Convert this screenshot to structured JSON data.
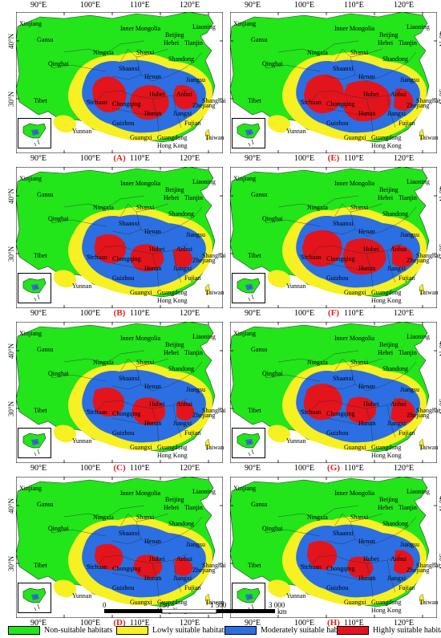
{
  "axes": {
    "lon_labels": [
      "90°E",
      "100°E",
      "110°E",
      "120°E"
    ],
    "lat_labels": [
      "40°N",
      "30°N"
    ]
  },
  "place_names": [
    "Xinjiang",
    "Gansu",
    "Inner Mongolia",
    "Liaoning",
    "Beijing",
    "Hebei",
    "Tianjin",
    "Ningxia",
    "Shanxi",
    "Shandong",
    "Qinghai",
    "Shaanxi",
    "Henan",
    "Jiangsu",
    "Tibet",
    "Sichuan",
    "Hubei",
    "Anhui",
    "Chongqing",
    "Shanghai",
    "Hunan",
    "Jiangxi",
    "Zhejiang",
    "Guizhou",
    "Fujian",
    "Yunnan",
    "Guangxi",
    "Guangdong",
    "Taiwan",
    "Hong Kong"
  ],
  "panels": [
    {
      "tag": "(A)"
    },
    {
      "tag": "(E)"
    },
    {
      "tag": "(B)"
    },
    {
      "tag": "(F)"
    },
    {
      "tag": "(C)"
    },
    {
      "tag": "(G)"
    },
    {
      "tag": "(D)"
    },
    {
      "tag": "(H)"
    }
  ],
  "scale": {
    "labels": [
      "0",
      "750",
      "1 500",
      "3 000"
    ],
    "unit": "km"
  },
  "legend": [
    {
      "label": "Non-suitable habitats",
      "color": "#22e51a"
    },
    {
      "label": "Lowly suitable habitats",
      "color": "#f7f023"
    },
    {
      "label": "Moderately suitable habitats",
      "color": "#2b6fe3"
    },
    {
      "label": "Highly suitable habitats",
      "color": "#e3141c"
    }
  ]
}
